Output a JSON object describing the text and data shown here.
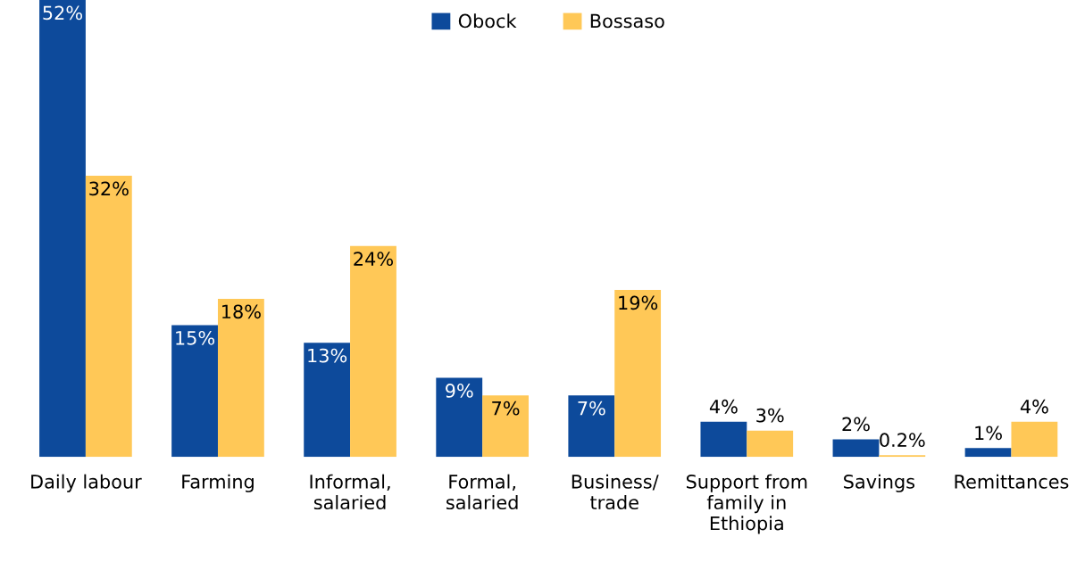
{
  "chart_data": {
    "type": "bar",
    "categories": [
      "Daily labour",
      "Farming",
      "Informal,\nsalaried",
      "Formal,\nsalaried",
      "Business/\ntrade",
      "Support from\nfamily in\nEthiopia",
      "Savings",
      "Remittances"
    ],
    "series": [
      {
        "name": "Obock",
        "color": "#0d4a9b",
        "values": [
          52,
          15,
          13,
          9,
          7,
          4,
          2,
          1
        ],
        "value_labels": [
          "52%",
          "15%",
          "13%",
          "9%",
          "7%",
          "4%",
          "2%",
          "1%"
        ]
      },
      {
        "name": "Bossaso",
        "color": "#ffc857",
        "values": [
          32,
          18,
          24,
          7,
          19,
          3,
          0.2,
          4
        ],
        "value_labels": [
          "32%",
          "18%",
          "24%",
          "7%",
          "19%",
          "3%",
          "0.2%",
          "4%"
        ]
      }
    ],
    "legend": "top",
    "grid": false
  }
}
